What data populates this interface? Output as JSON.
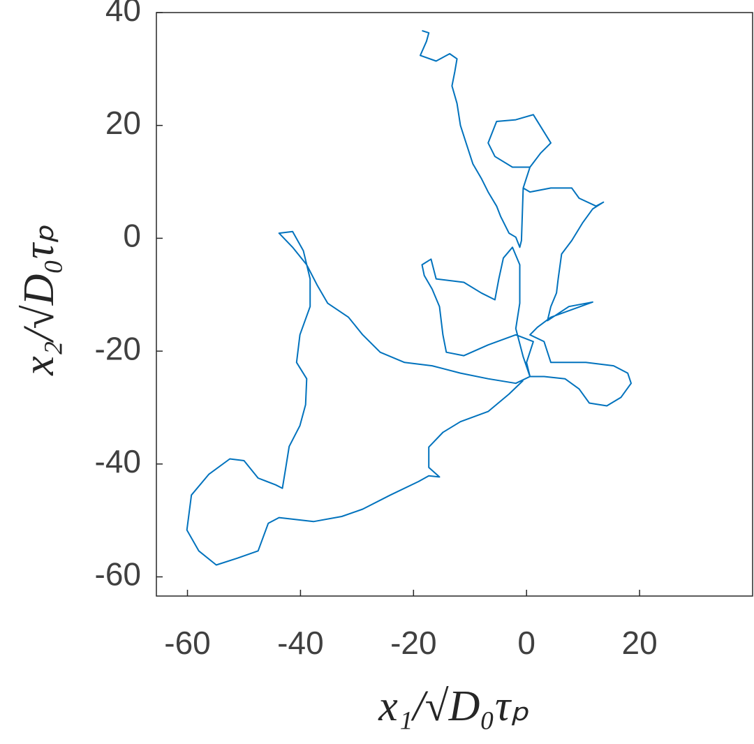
{
  "chart_data": {
    "type": "line",
    "x_label": "x₁/√D₀τₚ",
    "y_label": "x₂/√D₀τₚ",
    "color": "#0072BD",
    "xlim": [
      -65.5,
      40
    ],
    "ylim": [
      -63.4,
      40
    ],
    "xticks": [
      -60,
      -40,
      -20,
      0,
      20
    ],
    "yticks": [
      -60,
      -40,
      -20,
      0,
      20,
      40
    ],
    "box": true,
    "x": [
      -18.5,
      -17.3,
      -17.7,
      -18.8,
      -16.0,
      -13.6,
      -12.3,
      -12.7,
      -13.2,
      -12.3,
      -11.7,
      -10.7,
      -9.5,
      -8.0,
      -6.8,
      -5.3,
      -4.6,
      -3.1,
      -1.9,
      -1.2,
      -0.9,
      -0.6,
      0.6,
      -2.5,
      -5.6,
      -6.8,
      -5.3,
      -1.9,
      1.2,
      4.3,
      2.5,
      0.6,
      -0.6,
      0.6,
      4.3,
      8.0,
      9.3,
      12.3,
      13.6,
      11.7,
      9.9,
      8.0,
      6.2,
      5.6,
      5.3,
      4.3,
      3.7,
      7.5,
      11.7,
      4.3,
      1.9,
      0.6,
      3.1,
      4.3,
      10.5,
      15.4,
      17.9,
      18.5,
      16.7,
      14.2,
      11.1,
      9.3,
      6.8,
      3.1,
      0.6,
      0,
      1.2,
      -1.9,
      -6.8,
      -11.1,
      -14.2,
      -14.8,
      -15.4,
      -16.7,
      -18.1,
      -18.5,
      -16.9,
      -16.0,
      -11.1,
      -8.0,
      -5.6,
      -4.9,
      -4.1,
      -2.5,
      -1.2,
      -1.2,
      -1.9,
      -0.6,
      0.6,
      -1.9,
      -6.8,
      -11.7,
      -16.7,
      -21.6,
      -25.9,
      -29.0,
      -31.5,
      -35.2,
      -37.0,
      -38.9,
      -41.4,
      -43.8,
      -41.4,
      -39.5,
      -38.3,
      -38.3,
      -40.1,
      -40.7,
      -38.9,
      -39.1,
      -40.1,
      -42.0,
      -42.6,
      -43.2,
      -44.4,
      -47.5,
      -50.0,
      -52.5,
      -56.2,
      -59.3,
      -60.1,
      -58.0,
      -54.9,
      -51.2,
      -47.5,
      -45.7,
      -43.8,
      -37.7,
      -32.7,
      -29.0,
      -24.1,
      -19.1,
      -17.3,
      -15.4,
      -17.3,
      -17.3,
      -14.8,
      -11.7,
      -6.8,
      -3.1,
      -0.6
    ],
    "values": [
      36.8,
      36.4,
      34.9,
      32.4,
      31.4,
      32.7,
      31.8,
      29.5,
      27.0,
      23.9,
      20.0,
      16.9,
      13.2,
      10.6,
      8.2,
      5.7,
      3.9,
      0.9,
      0.2,
      -1.6,
      -0.4,
      8.9,
      12.6,
      12.6,
      14.5,
      16.9,
      20.7,
      21.0,
      21.9,
      16.9,
      15.1,
      12.6,
      8.9,
      8.2,
      8.9,
      8.9,
      7.1,
      5.7,
      6.4,
      5.2,
      2.7,
      -0.4,
      -2.8,
      -7.2,
      -9.7,
      -12.1,
      -14.6,
      -12.1,
      -11.3,
      -14.0,
      -15.8,
      -17.1,
      -18.3,
      -22.0,
      -22.0,
      -22.6,
      -23.9,
      -25.7,
      -28.2,
      -29.7,
      -29.2,
      -26.7,
      -24.9,
      -24.5,
      -24.5,
      -22.0,
      -18.3,
      -17.1,
      -18.9,
      -20.8,
      -20.2,
      -17.1,
      -12.1,
      -9.0,
      -6.6,
      -4.7,
      -3.7,
      -7.2,
      -7.8,
      -9.7,
      -10.9,
      -7.2,
      -3.5,
      -1.6,
      -4.7,
      -11.5,
      -16.0,
      -21.0,
      -24.5,
      -25.7,
      -24.9,
      -23.9,
      -22.6,
      -22.0,
      -20.2,
      -17.1,
      -14.0,
      -11.5,
      -8.4,
      -4.7,
      -1.6,
      0.9,
      1.2,
      -2.2,
      -7.2,
      -12.1,
      -17.1,
      -22.0,
      -24.9,
      -29.5,
      -33.2,
      -36.9,
      -40.6,
      -44.3,
      -43.7,
      -42.5,
      -39.4,
      -39.1,
      -41.8,
      -45.5,
      -51.7,
      -55.4,
      -57.9,
      -56.7,
      -55.4,
      -50.5,
      -49.5,
      -50.2,
      -49.3,
      -48.0,
      -45.5,
      -43.1,
      -42.1,
      -42.3,
      -40.6,
      -37.0,
      -34.4,
      -32.5,
      -30.7,
      -27.6,
      -25.2
    ]
  }
}
